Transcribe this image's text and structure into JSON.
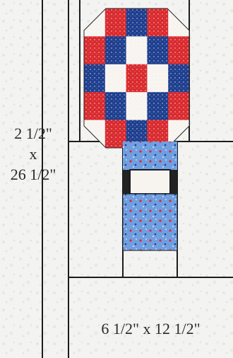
{
  "strip_label": {
    "line1": "2 1/2\"",
    "line2": "x",
    "line3": "26 1/2\""
  },
  "block_label": "6 1/2\" x 12 1/2\"",
  "colors": {
    "background": "#f3f3f1",
    "outline": "#1c1c1c",
    "red": "#d92b2f",
    "navy": "#1f3f8f",
    "white": "#f7f4f0",
    "light_blue": "#6f9fe0",
    "black": "#222222"
  },
  "nine_patch": {
    "rows": [
      [
        "white",
        "red",
        "navy",
        "red",
        "white"
      ],
      [
        "red",
        "navy",
        "white",
        "navy",
        "red"
      ],
      [
        "navy",
        "white",
        "red",
        "white",
        "navy"
      ],
      [
        "red",
        "navy",
        "white",
        "navy",
        "red"
      ],
      [
        "white",
        "red",
        "navy",
        "red",
        "white"
      ]
    ]
  }
}
